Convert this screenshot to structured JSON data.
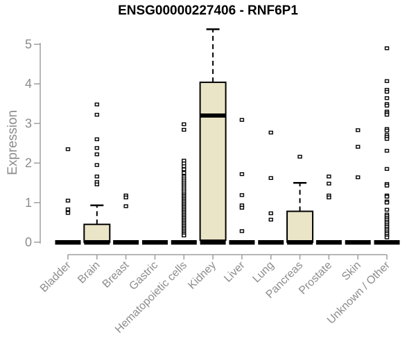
{
  "chart_data": {
    "type": "box",
    "title": "ENSG00000227406 - RNF6P1",
    "ylabel": "Expression",
    "xlabel": "",
    "ylim": [
      0,
      5.5
    ],
    "yticks": [
      0,
      1,
      2,
      3,
      4,
      5
    ],
    "grid": false,
    "legend_position": "none",
    "categories": [
      "Bladder",
      "Brain",
      "Breast",
      "Gastric",
      "Hematopoietic cells",
      "Kidney",
      "Liver",
      "Lung",
      "Pancreas",
      "Prostate",
      "Skin",
      "Unknown / Other"
    ],
    "colors": {
      "box_fill": "#EBE5C7",
      "box_stroke": "#000000",
      "axis": "#9E9E9E",
      "tick_label": "#8C8C8C",
      "title": "#000000",
      "point_fill": "#FFFFFF",
      "point_stroke": "#000000"
    },
    "groups": [
      {
        "label": "Bladder",
        "q1": 0,
        "median": 0,
        "q3": 0,
        "whisker_low": 0,
        "whisker_high": 0,
        "points": [
          2.35,
          1.05,
          0.83,
          0.74
        ]
      },
      {
        "label": "Brain",
        "q1": 0,
        "median": 0,
        "q3": 0.45,
        "whisker_low": 0,
        "whisker_high": 0.93,
        "points": [
          3.48,
          3.22,
          2.6,
          2.38,
          2.22,
          1.95,
          1.66,
          1.52,
          1.46
        ]
      },
      {
        "label": "Breast",
        "q1": 0,
        "median": 0,
        "q3": 0,
        "whisker_low": 0,
        "whisker_high": 0,
        "points": [
          1.18,
          1.13,
          0.91
        ]
      },
      {
        "label": "Gastric",
        "q1": 0,
        "median": 0,
        "q3": 0,
        "whisker_low": 0,
        "whisker_high": 0,
        "points": []
      },
      {
        "label": "Hematopoietic cells",
        "q1": 0,
        "median": 0,
        "q3": 0,
        "whisker_low": 0,
        "whisker_high": 0,
        "points": [
          2.98,
          2.84,
          2.06,
          1.99,
          1.92,
          1.84,
          1.75,
          1.66,
          1.61,
          1.56,
          1.51,
          1.46,
          1.41,
          1.36,
          1.31,
          1.26,
          1.21,
          1.17,
          1.13,
          1.09,
          1.05,
          1.01,
          0.97,
          0.93,
          0.89,
          0.85,
          0.81,
          0.77,
          0.73,
          0.69,
          0.65,
          0.61,
          0.57,
          0.53,
          0.49,
          0.45,
          0.41,
          0.37,
          0.33,
          0.29,
          0.25,
          0.21,
          0.17
        ]
      },
      {
        "label": "Kidney",
        "q1": 0.05,
        "median": 3.2,
        "q3": 4.04,
        "whisker_low": 0,
        "whisker_high": 5.38,
        "points": []
      },
      {
        "label": "Liver",
        "q1": 0,
        "median": 0,
        "q3": 0,
        "whisker_low": 0,
        "whisker_high": 0,
        "points": [
          3.09,
          1.72,
          1.19,
          0.93,
          0.87,
          0.28
        ]
      },
      {
        "label": "Lung",
        "q1": 0,
        "median": 0,
        "q3": 0,
        "whisker_low": 0,
        "whisker_high": 0,
        "points": [
          2.77,
          1.62,
          0.73,
          0.57
        ]
      },
      {
        "label": "Pancreas",
        "q1": 0,
        "median": 0,
        "q3": 0.78,
        "whisker_low": 0,
        "whisker_high": 1.5,
        "points": [
          2.16
        ]
      },
      {
        "label": "Prostate",
        "q1": 0,
        "median": 0,
        "q3": 0,
        "whisker_low": 0,
        "whisker_high": 0,
        "points": [
          1.66,
          1.48,
          1.18,
          1.13
        ]
      },
      {
        "label": "Skin",
        "q1": 0,
        "median": 0,
        "q3": 0,
        "whisker_low": 0,
        "whisker_high": 0,
        "points": [
          2.83,
          2.41,
          1.64
        ]
      },
      {
        "label": "Unknown / Other",
        "q1": 0,
        "median": 0,
        "q3": 0,
        "whisker_low": 0,
        "whisker_high": 0,
        "points": [
          4.9,
          4.07,
          3.85,
          3.8,
          3.64,
          3.49,
          3.45,
          3.3,
          3.26,
          3.22,
          2.86,
          2.82,
          2.71,
          2.66,
          2.61,
          2.31,
          1.85,
          1.47,
          1.43,
          1.18,
          1.15,
          1.03,
          1.0,
          0.82,
          0.7,
          0.66,
          0.61,
          0.57,
          0.52,
          0.48,
          0.43,
          0.39,
          0.34,
          0.3,
          0.25,
          0.21,
          0.16,
          0.12
        ]
      }
    ]
  }
}
